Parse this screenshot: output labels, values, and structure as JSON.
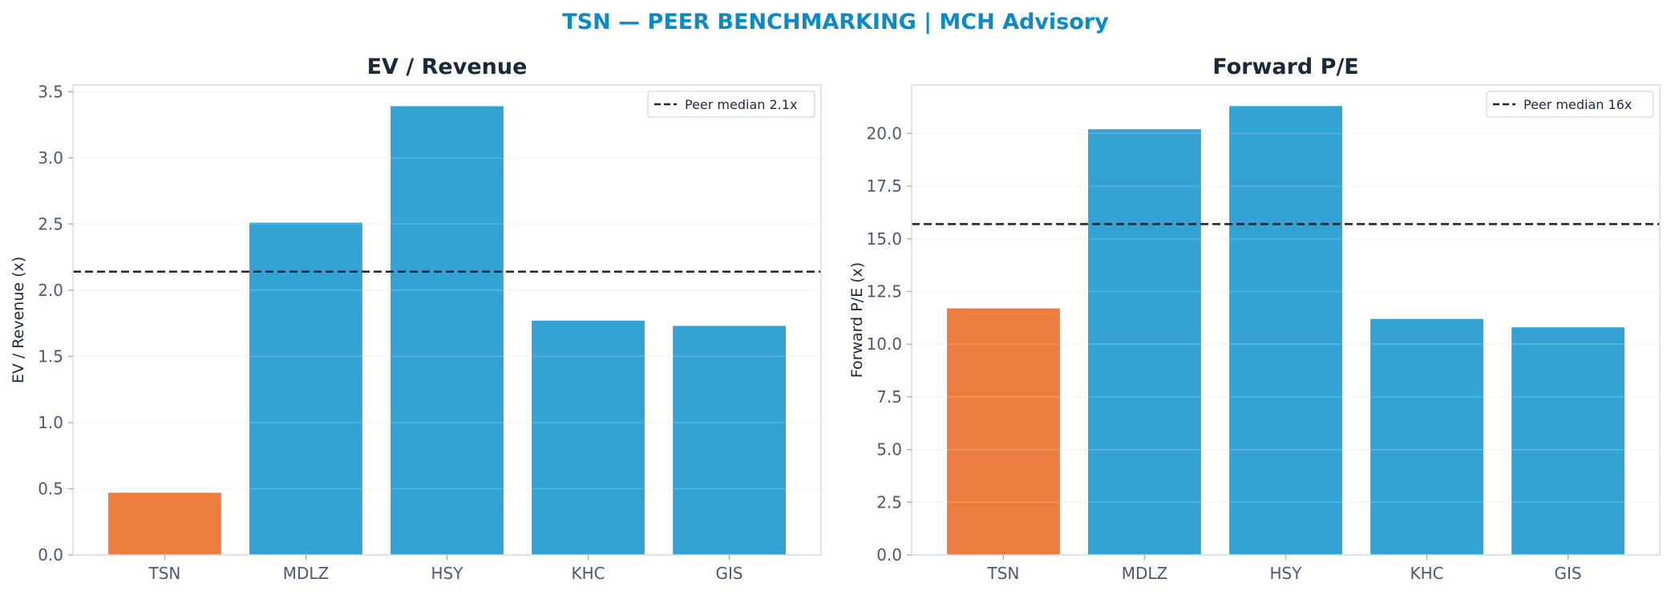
{
  "figure": {
    "suptitle": "TSN — PEER BENCHMARKING | MCH Advisory"
  },
  "colors": {
    "highlight": "#ed7d3e",
    "peer": "#33a3d4",
    "median_line": "#1b2a3a",
    "title": "#0b8ac7"
  },
  "chart_data": [
    {
      "type": "bar",
      "title": "EV / Revenue",
      "xlabel": "",
      "ylabel": "EV / Revenue (x)",
      "categories": [
        "TSN",
        "MDLZ",
        "HSY",
        "KHC",
        "GIS"
      ],
      "values": [
        0.47,
        2.51,
        3.39,
        1.77,
        1.73
      ],
      "highlight": "TSN",
      "ylim": [
        0,
        3.55
      ],
      "yticks": [
        0.0,
        0.5,
        1.0,
        1.5,
        2.0,
        2.5,
        3.0,
        3.5
      ],
      "ytick_labels": [
        "0.0",
        "0.5",
        "1.0",
        "1.5",
        "2.0",
        "2.5",
        "3.0",
        "3.5"
      ],
      "reference_line": {
        "value": 2.14,
        "label": "Peer median 2.1x",
        "style": "dashed"
      },
      "legend": "top-right",
      "grid": "horizontal"
    },
    {
      "type": "bar",
      "title": "Forward P/E",
      "xlabel": "",
      "ylabel": "Forward P/E (x)",
      "categories": [
        "TSN",
        "MDLZ",
        "HSY",
        "KHC",
        "GIS"
      ],
      "values": [
        11.7,
        20.2,
        21.3,
        11.2,
        10.8
      ],
      "highlight": "TSN",
      "ylim": [
        0,
        22.3
      ],
      "yticks": [
        0.0,
        2.5,
        5.0,
        7.5,
        10.0,
        12.5,
        15.0,
        17.5,
        20.0
      ],
      "ytick_labels": [
        "0.0",
        "2.5",
        "5.0",
        "7.5",
        "10.0",
        "12.5",
        "15.0",
        "17.5",
        "20.0"
      ],
      "reference_line": {
        "value": 15.7,
        "label": "Peer median 16x",
        "style": "dashed"
      },
      "legend": "top-right",
      "grid": "horizontal"
    }
  ]
}
